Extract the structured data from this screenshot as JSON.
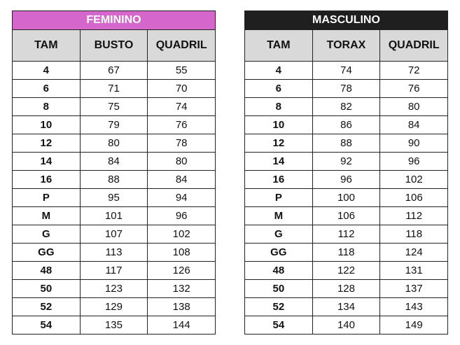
{
  "feminino": {
    "title": "FEMININO",
    "headers": [
      "TAM",
      "BUSTO",
      "QUADRIL"
    ],
    "rows": [
      [
        "4",
        "67",
        "55"
      ],
      [
        "6",
        "71",
        "70"
      ],
      [
        "8",
        "75",
        "74"
      ],
      [
        "10",
        "79",
        "76"
      ],
      [
        "12",
        "80",
        "78"
      ],
      [
        "14",
        "84",
        "80"
      ],
      [
        "16",
        "88",
        "84"
      ],
      [
        "P",
        "95",
        "94"
      ],
      [
        "M",
        "101",
        "96"
      ],
      [
        "G",
        "107",
        "102"
      ],
      [
        "GG",
        "113",
        "108"
      ],
      [
        "48",
        "117",
        "126"
      ],
      [
        "50",
        "123",
        "132"
      ],
      [
        "52",
        "129",
        "138"
      ],
      [
        "54",
        "135",
        "144"
      ]
    ]
  },
  "masculino": {
    "title": "MASCULINO",
    "headers": [
      "TAM",
      "TORAX",
      "QUADRIL"
    ],
    "rows": [
      [
        "4",
        "74",
        "72"
      ],
      [
        "6",
        "78",
        "76"
      ],
      [
        "8",
        "82",
        "80"
      ],
      [
        "10",
        "86",
        "84"
      ],
      [
        "12",
        "88",
        "90"
      ],
      [
        "14",
        "92",
        "96"
      ],
      [
        "16",
        "96",
        "102"
      ],
      [
        "P",
        "100",
        "106"
      ],
      [
        "M",
        "106",
        "112"
      ],
      [
        "G",
        "112",
        "118"
      ],
      [
        "GG",
        "118",
        "124"
      ],
      [
        "48",
        "122",
        "131"
      ],
      [
        "50",
        "128",
        "137"
      ],
      [
        "52",
        "134",
        "143"
      ],
      [
        "54",
        "140",
        "149"
      ]
    ]
  },
  "colors": {
    "feminino_header": "#d466cc",
    "masculino_header": "#1f1f1f",
    "column_header": "#d9d9d9"
  }
}
